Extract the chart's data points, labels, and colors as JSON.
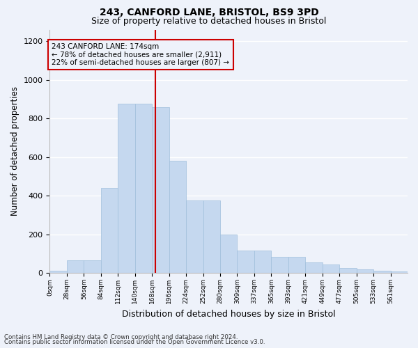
{
  "title1": "243, CANFORD LANE, BRISTOL, BS9 3PD",
  "title2": "Size of property relative to detached houses in Bristol",
  "xlabel": "Distribution of detached houses by size in Bristol",
  "ylabel": "Number of detached properties",
  "footnote1": "Contains HM Land Registry data © Crown copyright and database right 2024.",
  "footnote2": "Contains public sector information licensed under the Open Government Licence v3.0.",
  "annotation_line1": "243 CANFORD LANE: 174sqm",
  "annotation_line2": "← 78% of detached houses are smaller (2,911)",
  "annotation_line3": "22% of semi-detached houses are larger (807) →",
  "property_size": 174,
  "bar_labels": [
    "0sqm",
    "28sqm",
    "56sqm",
    "84sqm",
    "112sqm",
    "140sqm",
    "168sqm",
    "196sqm",
    "224sqm",
    "252sqm",
    "280sqm",
    "309sqm",
    "337sqm",
    "365sqm",
    "393sqm",
    "421sqm",
    "449sqm",
    "477sqm",
    "505sqm",
    "533sqm",
    "561sqm"
  ],
  "bar_values": [
    12,
    65,
    65,
    440,
    875,
    875,
    860,
    580,
    375,
    375,
    200,
    115,
    115,
    85,
    85,
    55,
    42,
    25,
    17,
    10,
    8
  ],
  "bar_color": "#c5d8ef",
  "bar_edge_color": "#a0bfdc",
  "vline_color": "#cc0000",
  "annotation_box_color": "#cc0000",
  "ylim": [
    0,
    1260
  ],
  "yticks": [
    0,
    200,
    400,
    600,
    800,
    1000,
    1200
  ],
  "background_color": "#eef2fa",
  "grid_color": "#ffffff",
  "title1_fontsize": 10,
  "title2_fontsize": 9,
  "xlabel_fontsize": 9,
  "ylabel_fontsize": 8.5
}
